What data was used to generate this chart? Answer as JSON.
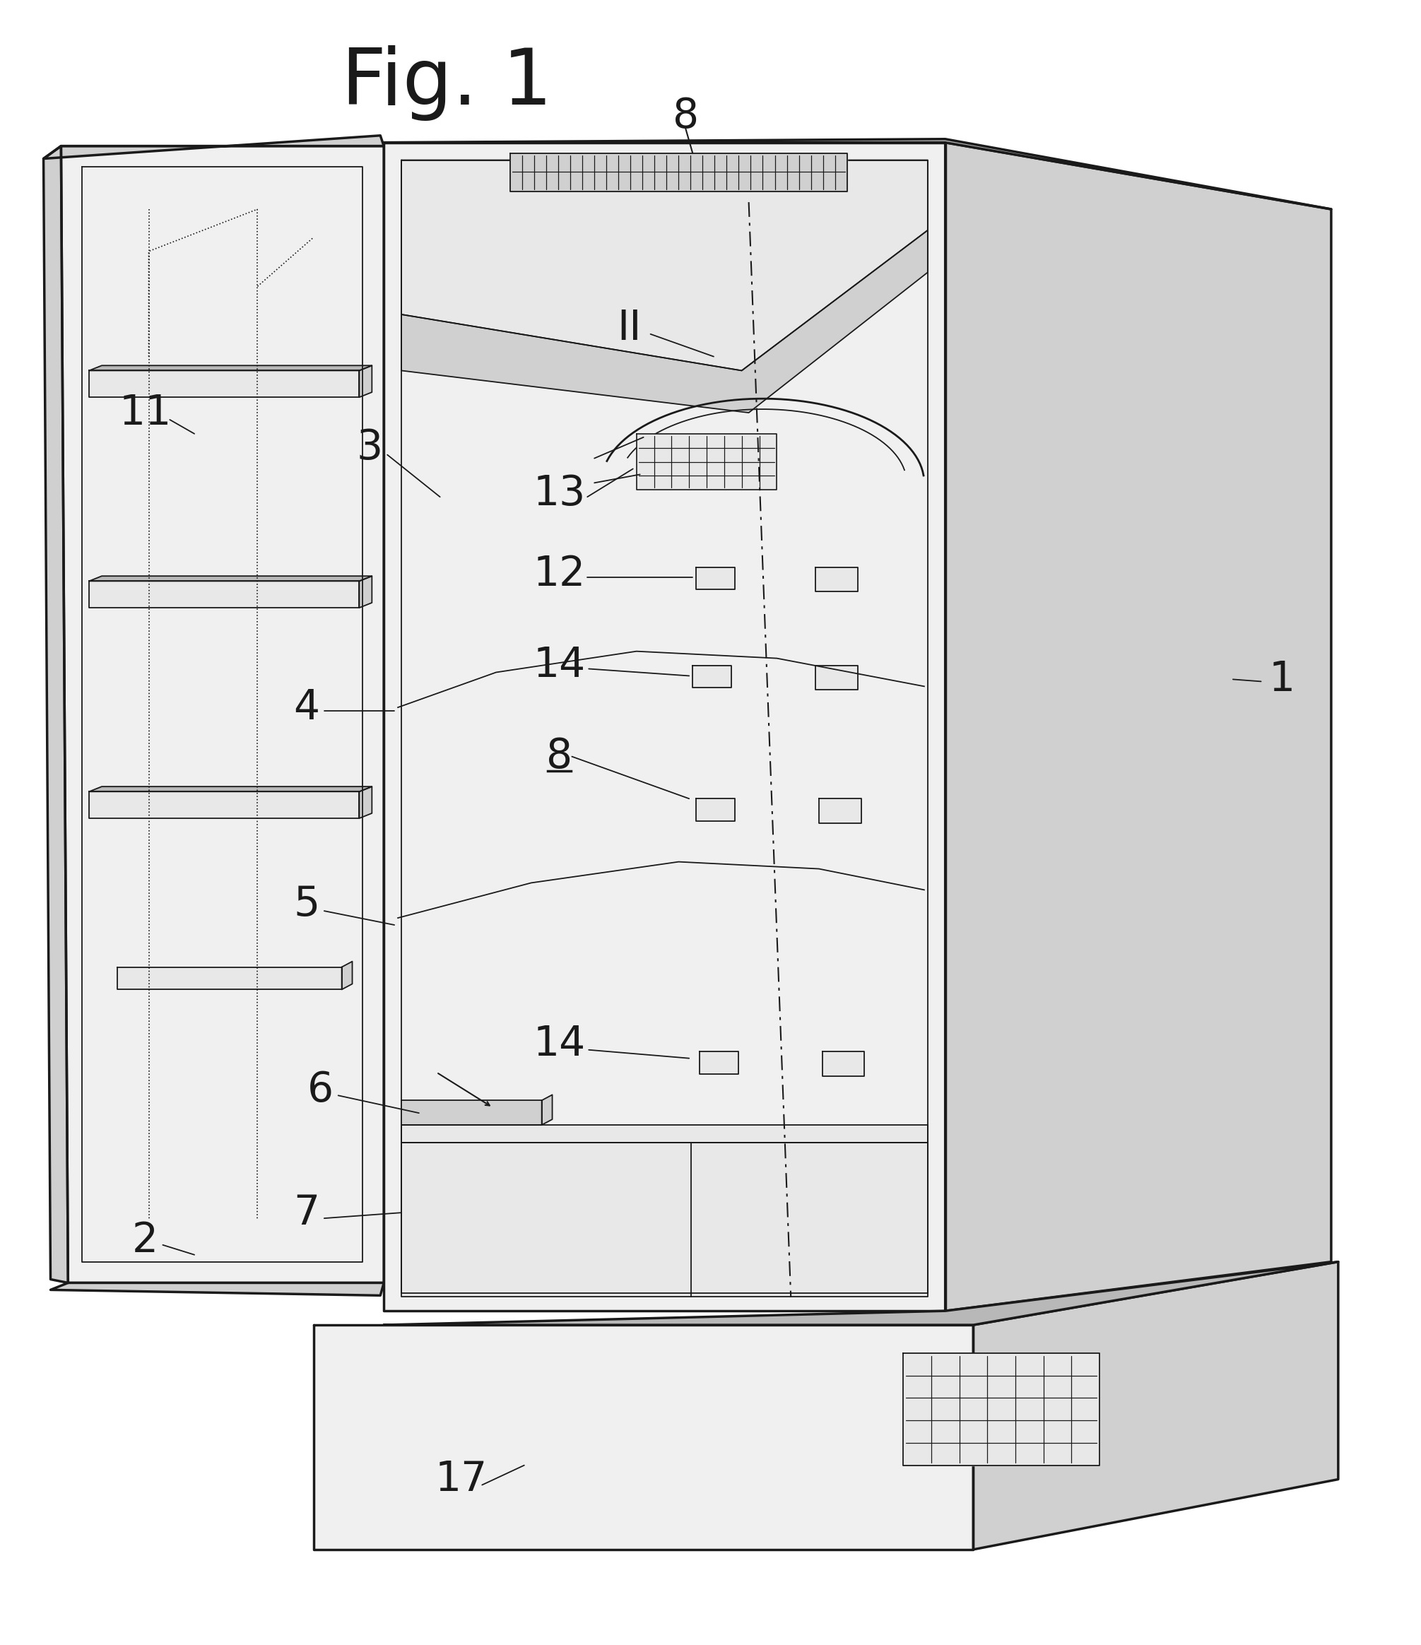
{
  "title": "Fig. 1",
  "bg": "#ffffff",
  "lc": "#1a1a1a",
  "lw": 2.0,
  "lw_thin": 1.3,
  "lw_thick": 2.5,
  "fig_w": 20.11,
  "fig_h": 23.28,
  "gray_light": "#e8e8e8",
  "gray_mid": "#d0d0d0",
  "gray_dark": "#b8b8b8",
  "gray_fill": "#f0f0f0",
  "white": "#ffffff"
}
